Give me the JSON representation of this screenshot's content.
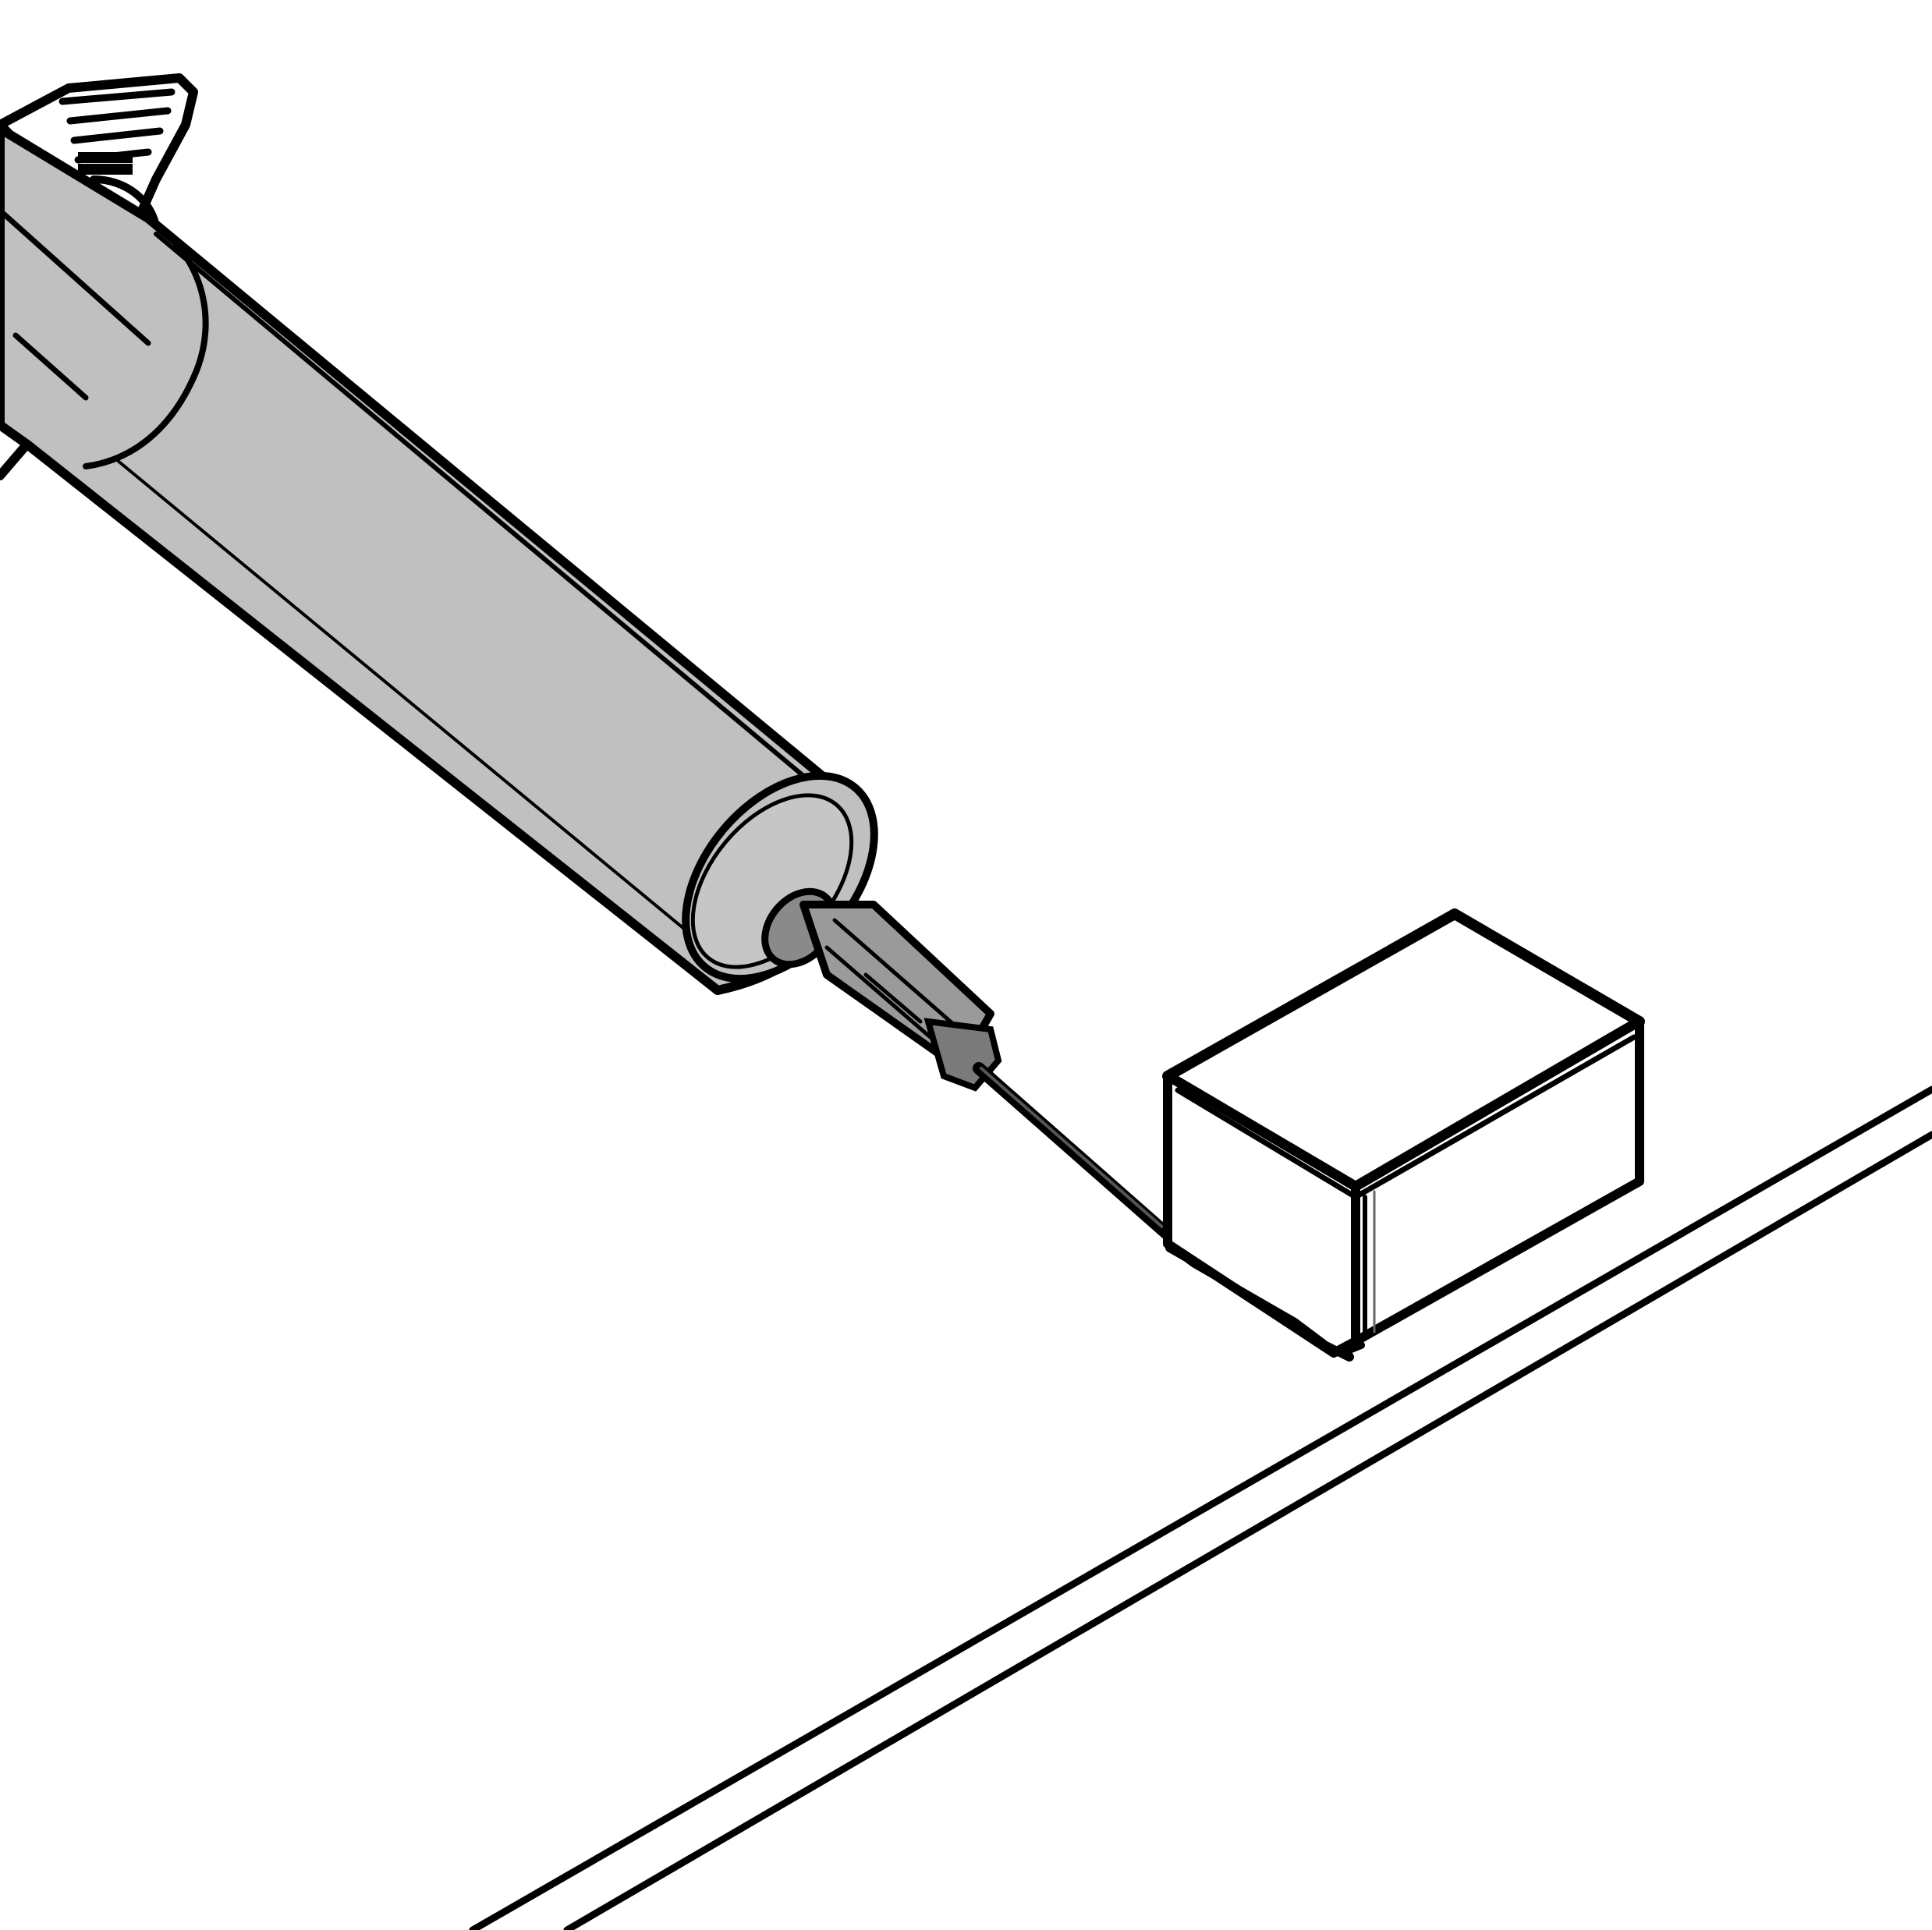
{
  "figure": {
    "background_color": "#ffffff",
    "line_color": "#000000",
    "barrel_fill_color": "#c0c0c0",
    "components": [
      "syringe-plunger-flange",
      "syringe-barrel",
      "dispensing-tip",
      "dispensed-bead",
      "component-block",
      "substrate-edge"
    ]
  }
}
